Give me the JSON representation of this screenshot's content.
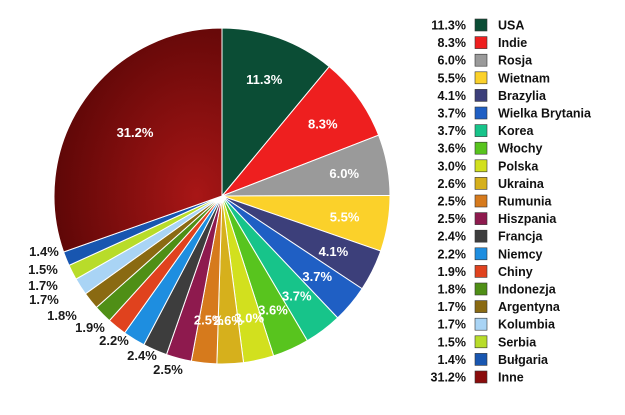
{
  "chart_data": {
    "type": "pie",
    "title": "",
    "legend_position": "right",
    "slices": [
      {
        "label": "USA",
        "value": 11.3,
        "display": "11.3%",
        "color": "#0b4d35"
      },
      {
        "label": "Indie",
        "value": 8.3,
        "display": "8.3%",
        "color": "#ee1f1f"
      },
      {
        "label": "Rosja",
        "value": 6.0,
        "display": "6.0%",
        "color": "#9a9a9a"
      },
      {
        "label": "Wietnam",
        "value": 5.5,
        "display": "5.5%",
        "color": "#fbd12a"
      },
      {
        "label": "Brazylia",
        "value": 4.1,
        "display": "4.1%",
        "color": "#3c3f7a"
      },
      {
        "label": "Wielka Brytania",
        "value": 3.7,
        "display": "3.7%",
        "color": "#1f5fc4"
      },
      {
        "label": "Korea",
        "value": 3.7,
        "display": "3.7%",
        "color": "#17c48a"
      },
      {
        "label": "Włochy",
        "value": 3.6,
        "display": "3.6%",
        "color": "#58c41e"
      },
      {
        "label": "Polska",
        "value": 3.0,
        "display": "3.0%",
        "color": "#d2e01e"
      },
      {
        "label": "Ukraina",
        "value": 2.6,
        "display": "2.6%",
        "color": "#d6b01c"
      },
      {
        "label": "Rumunia",
        "value": 2.5,
        "display": "2.5%",
        "color": "#d67a1c"
      },
      {
        "label": "Hiszpania",
        "value": 2.5,
        "display": "2.5%",
        "color": "#8e1a4e"
      },
      {
        "label": "Francja",
        "value": 2.4,
        "display": "2.4%",
        "color": "#3d3d3d"
      },
      {
        "label": "Niemcy",
        "value": 2.2,
        "display": "2.2%",
        "color": "#1e8ee0"
      },
      {
        "label": "Chiny",
        "value": 1.9,
        "display": "1.9%",
        "color": "#e0421e"
      },
      {
        "label": "Indonezja",
        "value": 1.8,
        "display": "1.8%",
        "color": "#4f8f16"
      },
      {
        "label": "Argentyna",
        "value": 1.7,
        "display": "1.7%",
        "color": "#8a6a12"
      },
      {
        "label": "Kolumbia",
        "value": 1.7,
        "display": "1.7%",
        "color": "#a9d4f5"
      },
      {
        "label": "Serbia",
        "value": 1.5,
        "display": "1.5%",
        "color": "#b8dc2a"
      },
      {
        "label": "Bułgaria",
        "value": 1.4,
        "display": "1.4%",
        "color": "#1856b0"
      },
      {
        "label": "Inne",
        "value": 31.2,
        "display": "31.2%",
        "color": "#8a0c0c"
      }
    ]
  }
}
